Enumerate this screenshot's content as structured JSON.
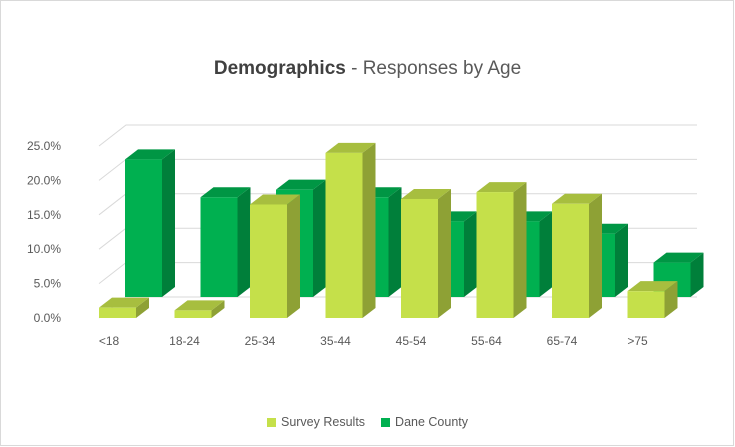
{
  "chart_data": {
    "type": "bar",
    "title_bold": "Demographics",
    "title_rest": " - Responses by Age",
    "categories": [
      "<18",
      "18-24",
      "25-34",
      "35-44",
      "45-54",
      "55-64",
      "65-74",
      ">75"
    ],
    "series": [
      {
        "name": "Survey Results",
        "color": "#c5e04a",
        "values": [
          1.5,
          1.1,
          16.5,
          24.0,
          17.3,
          18.3,
          16.6,
          3.9
        ]
      },
      {
        "name": "Dane County",
        "color": "#00b050",
        "values": [
          20.0,
          14.5,
          15.6,
          14.5,
          11.0,
          11.0,
          9.2,
          5.0
        ]
      }
    ],
    "y_ticks": [
      "0.0%",
      "5.0%",
      "10.0%",
      "15.0%",
      "20.0%",
      "25.0%"
    ],
    "ylim": [
      0,
      25
    ],
    "grid": true,
    "legend": "bottom"
  }
}
